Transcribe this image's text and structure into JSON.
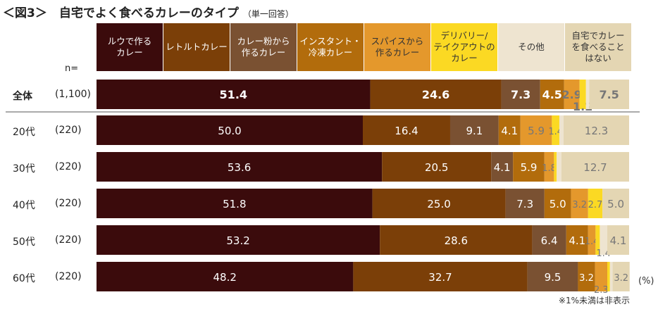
{
  "title": "＜図3＞　自宅でよく食べるカレーのタイプ",
  "subtitle": "（単一回答）",
  "n_label": "n=",
  "unit": "(%)",
  "note": "※1%未満は非表示",
  "chart_data": {
    "type": "bar",
    "orientation": "horizontal-stacked-100",
    "categories": [
      "ルウで作る\nカレー",
      "レトルトカレー",
      "カレー粉から\n作るカレー",
      "インスタント・\n冷凍カレー",
      "スパイスから\n作るカレー",
      "デリバリー/\nテイクアウトの\nカレー",
      "その他",
      "自宅でカレー\nを食べること\nはない"
    ],
    "colors": [
      "#3b0b0c",
      "#7b3f08",
      "#7a5132",
      "#b26c0c",
      "#e4982c",
      "#fbd923",
      "#eee4d0",
      "#e4d6b3"
    ],
    "rows": [
      {
        "label": "全体",
        "n": "(1,100)",
        "values": [
          51.4,
          24.6,
          7.3,
          4.5,
          2.9,
          1.2,
          0.6,
          7.5
        ],
        "shown": [
          "51.4",
          "24.6",
          "7.3",
          "4.5",
          "2.9",
          "1.2",
          null,
          "7.5"
        ]
      },
      {
        "label": "20代",
        "n": "(220)",
        "values": [
          50.0,
          16.4,
          9.1,
          4.1,
          5.9,
          1.4,
          0.8,
          12.3
        ],
        "shown": [
          "50.0",
          "16.4",
          "9.1",
          "4.1",
          "5.9",
          "1.4",
          null,
          "12.3"
        ]
      },
      {
        "label": "30代",
        "n": "(220)",
        "values": [
          53.6,
          20.5,
          4.1,
          5.9,
          1.8,
          0.5,
          0.9,
          12.7
        ],
        "shown": [
          "53.6",
          "20.5",
          "4.1",
          "5.9",
          "1.8",
          null,
          null,
          "12.7"
        ]
      },
      {
        "label": "40代",
        "n": "(220)",
        "values": [
          51.8,
          25.0,
          7.3,
          5.0,
          3.2,
          2.7,
          0.0,
          5.0
        ],
        "shown": [
          "51.8",
          "25.0",
          "7.3",
          "5.0",
          "3.2",
          "2.7",
          null,
          "5.0"
        ]
      },
      {
        "label": "50代",
        "n": "(220)",
        "values": [
          53.2,
          28.6,
          6.4,
          4.1,
          1.4,
          0.8,
          1.4,
          4.1
        ],
        "shown": [
          "53.2",
          "28.6",
          "6.4",
          "4.1",
          "1.4",
          null,
          "1.4",
          "4.1"
        ]
      },
      {
        "label": "60代",
        "n": "(220)",
        "values": [
          48.2,
          32.7,
          9.5,
          3.2,
          2.3,
          0.5,
          0.5,
          3.2
        ],
        "shown": [
          "48.2",
          "32.7",
          "9.5",
          "3.2",
          "2.3",
          null,
          null,
          "3.2"
        ]
      }
    ],
    "xlim": [
      0,
      100
    ]
  }
}
